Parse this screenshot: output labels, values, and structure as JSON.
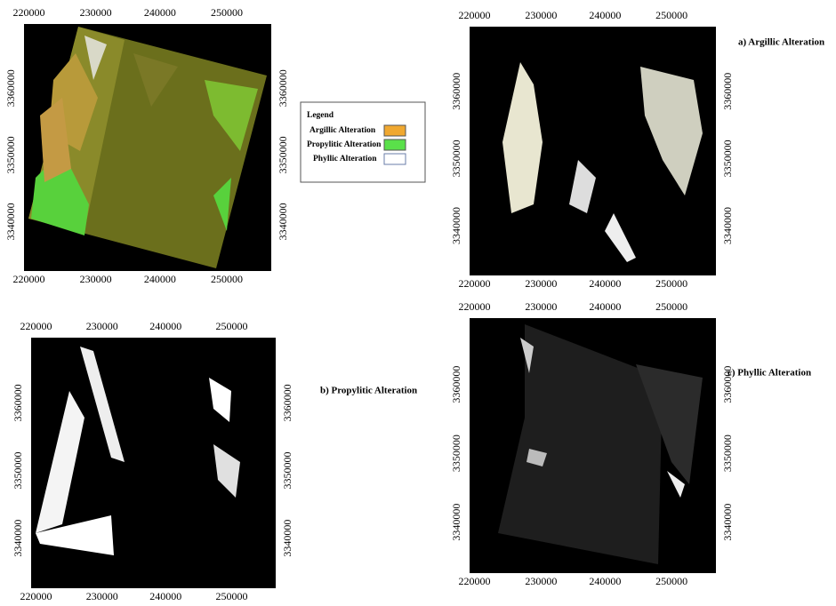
{
  "panels": [
    {
      "x_labels": [
        "220000",
        "230000",
        "240000",
        "250000"
      ],
      "y_labels": [
        "3360000",
        "3350000",
        "3340000"
      ]
    },
    {
      "x_labels": [
        "220000",
        "230000",
        "240000",
        "250000"
      ],
      "y_labels": [
        "3360000",
        "3350000",
        "3340000"
      ],
      "caption": "a) Argillic Alteration"
    },
    {
      "x_labels": [
        "220000",
        "230000",
        "240000",
        "250000"
      ],
      "y_labels": [
        "3360000",
        "3350000",
        "3340000"
      ],
      "caption": "b) Propylitic Alteration"
    },
    {
      "x_labels": [
        "220000",
        "230000",
        "240000",
        "250000"
      ],
      "y_labels": [
        "3360000",
        "3350000",
        "3340000"
      ],
      "caption": "c) Phyllic Alteration"
    }
  ],
  "legend": {
    "title": "Legend",
    "items": [
      "Argillic Alteration",
      "Propylitic Alteration",
      "Phyllic Alteration"
    ]
  }
}
